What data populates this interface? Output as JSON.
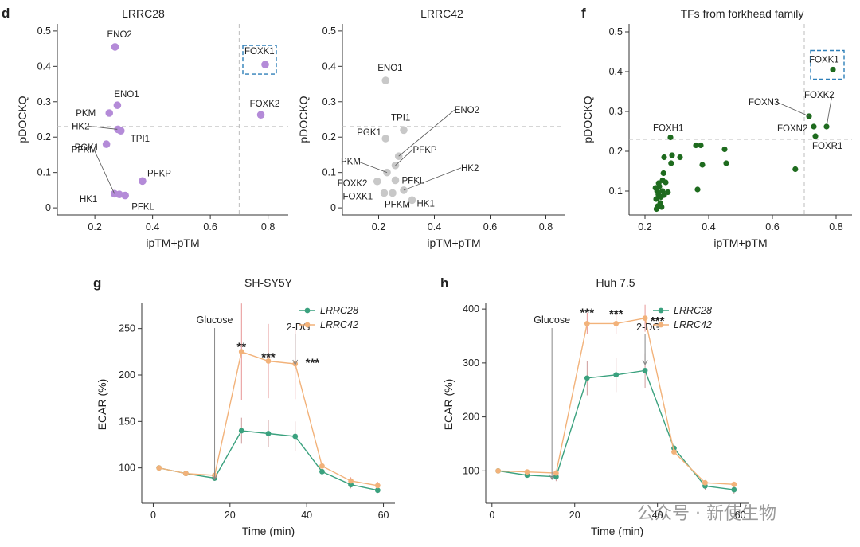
{
  "panels": {
    "d": "d",
    "f": "f",
    "g": "g",
    "h": "h"
  },
  "watermark": "公众号 · 新使生物",
  "chart_data": [
    {
      "id": "lrrc28",
      "type": "scatter",
      "title": "LRRC28",
      "xlabel": "ipTM+pTM",
      "ylabel": "pDOCKQ",
      "xlim": [
        0.07,
        0.87
      ],
      "ylim": [
        -0.02,
        0.52
      ],
      "xticks": [
        0.2,
        0.4,
        0.6,
        0.8
      ],
      "yticks": [
        0,
        0.1,
        0.2,
        0.3,
        0.4,
        0.5
      ],
      "xtick_labels": [
        "0.2",
        "0.4",
        "0.6",
        "0.8"
      ],
      "ytick_labels": [
        "0",
        "0.1",
        "0.2",
        "0.3",
        "0.4",
        "0.5"
      ],
      "hline": 0.23,
      "vline": 0.7,
      "color": "#b48bd8",
      "highlight": "FOXK1",
      "points": [
        {
          "name": "ENO2",
          "x": 0.27,
          "y": 0.455
        },
        {
          "name": "FOXK1",
          "x": 0.79,
          "y": 0.405
        },
        {
          "name": "FOXK2",
          "x": 0.775,
          "y": 0.263
        },
        {
          "name": "ENO1",
          "x": 0.278,
          "y": 0.29
        },
        {
          "name": "PKM",
          "x": 0.25,
          "y": 0.268
        },
        {
          "name": "HK2",
          "x": 0.28,
          "y": 0.222
        },
        {
          "name": "TPI1",
          "x": 0.29,
          "y": 0.218
        },
        {
          "name": "PGK1",
          "x": 0.24,
          "y": 0.18
        },
        {
          "name": "PFKP",
          "x": 0.365,
          "y": 0.076
        },
        {
          "name": "PFKM",
          "x": 0.268,
          "y": 0.04
        },
        {
          "name": "HK1",
          "x": 0.285,
          "y": 0.038
        },
        {
          "name": "PFKL",
          "x": 0.305,
          "y": 0.035
        }
      ]
    },
    {
      "id": "lrrc42",
      "type": "scatter",
      "title": "LRRC42",
      "xlabel": "ipTM+pTM",
      "ylabel": "pDOCKQ",
      "xlim": [
        0.07,
        0.87
      ],
      "ylim": [
        -0.02,
        0.52
      ],
      "xticks": [
        0.2,
        0.4,
        0.6,
        0.8
      ],
      "yticks": [
        0,
        0.1,
        0.2,
        0.3,
        0.4,
        0.5
      ],
      "xtick_labels": [
        "0.2",
        "0.4",
        "0.6",
        "0.8"
      ],
      "ytick_labels": [
        "0",
        "0.1",
        "0.2",
        "0.3",
        "0.4",
        "0.5"
      ],
      "hline": 0.23,
      "vline": 0.7,
      "color": "#c8c8c8",
      "points": [
        {
          "name": "ENO1",
          "x": 0.225,
          "y": 0.36
        },
        {
          "name": "TPI1",
          "x": 0.29,
          "y": 0.22
        },
        {
          "name": "PGK1",
          "x": 0.225,
          "y": 0.196
        },
        {
          "name": "ENO2",
          "x": 0.272,
          "y": 0.146
        },
        {
          "name": "PFKP",
          "x": 0.26,
          "y": 0.12
        },
        {
          "name": "PKM",
          "x": 0.23,
          "y": 0.1
        },
        {
          "name": "FOXK2",
          "x": 0.195,
          "y": 0.075
        },
        {
          "name": "PFKL",
          "x": 0.26,
          "y": 0.078
        },
        {
          "name": "HK2",
          "x": 0.29,
          "y": 0.05
        },
        {
          "name": "FOXK1",
          "x": 0.22,
          "y": 0.042
        },
        {
          "name": "PFKM",
          "x": 0.25,
          "y": 0.042
        },
        {
          "name": "HK1",
          "x": 0.32,
          "y": 0.022
        }
      ]
    },
    {
      "id": "forkhead",
      "type": "scatter",
      "title": "TFs from forkhead family",
      "xlabel": "ipTM+pTM",
      "ylabel": "pDOCKQ",
      "xlim": [
        0.15,
        0.85
      ],
      "ylim": [
        0.04,
        0.52
      ],
      "xticks": [
        0.2,
        0.4,
        0.6,
        0.8
      ],
      "yticks": [
        0.1,
        0.2,
        0.3,
        0.4,
        0.5
      ],
      "xtick_labels": [
        "0.2",
        "0.4",
        "0.6",
        "0.8"
      ],
      "ytick_labels": [
        "0.1",
        "0.2",
        "0.3",
        "0.4",
        "0.5"
      ],
      "hline": 0.23,
      "vline": 0.7,
      "color": "#1e6b1e",
      "highlight": "FOXK1",
      "labels": [
        "FOXK1",
        "FOXN3",
        "FOXK2",
        "FOXN2",
        "FOXR1",
        "FOXH1"
      ],
      "points": [
        {
          "name": "FOXK1",
          "x": 0.79,
          "y": 0.405
        },
        {
          "name": "FOXN3",
          "x": 0.715,
          "y": 0.288
        },
        {
          "name": "FOXK2",
          "x": 0.77,
          "y": 0.262
        },
        {
          "name": "FOXN2",
          "x": 0.73,
          "y": 0.262
        },
        {
          "name": "FOXR1",
          "x": 0.735,
          "y": 0.238
        },
        {
          "name": "FOXH1",
          "x": 0.28,
          "y": 0.235
        },
        {
          "name": "",
          "x": 0.672,
          "y": 0.155
        },
        {
          "name": "",
          "x": 0.45,
          "y": 0.205
        },
        {
          "name": "",
          "x": 0.455,
          "y": 0.17
        },
        {
          "name": "",
          "x": 0.36,
          "y": 0.215
        },
        {
          "name": "",
          "x": 0.375,
          "y": 0.215
        },
        {
          "name": "",
          "x": 0.38,
          "y": 0.166
        },
        {
          "name": "",
          "x": 0.365,
          "y": 0.104
        },
        {
          "name": "",
          "x": 0.26,
          "y": 0.185
        },
        {
          "name": "",
          "x": 0.31,
          "y": 0.185
        },
        {
          "name": "",
          "x": 0.285,
          "y": 0.19
        },
        {
          "name": "",
          "x": 0.282,
          "y": 0.17
        },
        {
          "name": "",
          "x": 0.258,
          "y": 0.145
        },
        {
          "name": "",
          "x": 0.265,
          "y": 0.122
        },
        {
          "name": "",
          "x": 0.255,
          "y": 0.127
        },
        {
          "name": "",
          "x": 0.272,
          "y": 0.097
        },
        {
          "name": "",
          "x": 0.26,
          "y": 0.09
        },
        {
          "name": "",
          "x": 0.245,
          "y": 0.112
        },
        {
          "name": "",
          "x": 0.238,
          "y": 0.1
        },
        {
          "name": "",
          "x": 0.242,
          "y": 0.092
        },
        {
          "name": "",
          "x": 0.25,
          "y": 0.085
        },
        {
          "name": "",
          "x": 0.235,
          "y": 0.08
        },
        {
          "name": "",
          "x": 0.248,
          "y": 0.07
        },
        {
          "name": "",
          "x": 0.24,
          "y": 0.062
        },
        {
          "name": "",
          "x": 0.236,
          "y": 0.055
        },
        {
          "name": "",
          "x": 0.252,
          "y": 0.06
        },
        {
          "name": "",
          "x": 0.243,
          "y": 0.12
        },
        {
          "name": "",
          "x": 0.233,
          "y": 0.108
        },
        {
          "name": "",
          "x": 0.255,
          "y": 0.1
        }
      ]
    },
    {
      "id": "shsy5y",
      "type": "line",
      "title": "SH-SY5Y",
      "xlabel": "Time (min)",
      "ylabel": "ECAR (%)",
      "xlim": [
        -3,
        63
      ],
      "ylim": [
        62,
        278
      ],
      "xticks": [
        0,
        20,
        40,
        60
      ],
      "yticks": [
        100,
        150,
        200,
        250
      ],
      "xtick_labels": [
        "0",
        "20",
        "40",
        "60"
      ],
      "ytick_labels": [
        "100",
        "150",
        "200",
        "250"
      ],
      "x": [
        1.5,
        8.5,
        16,
        23,
        30,
        37,
        44,
        51.5,
        58.5
      ],
      "series": [
        {
          "name": "LRRC28",
          "color": "#3aa17e",
          "values": [
            100,
            94,
            89,
            140,
            137,
            134,
            96,
            82,
            76
          ],
          "err": [
            2,
            2,
            3,
            14,
            15,
            16,
            5,
            4,
            3
          ]
        },
        {
          "name": "LRRC42",
          "color": "#f2b27a",
          "values": [
            100,
            94,
            92,
            225,
            215,
            212,
            102,
            86,
            81
          ],
          "err": [
            2,
            2,
            3,
            52,
            40,
            38,
            5,
            4,
            4
          ]
        }
      ],
      "arrows": [
        {
          "label": "Glucose",
          "x": 16
        },
        {
          "label": "2-DG",
          "x": 37
        }
      ],
      "annotations": [
        {
          "text": "**",
          "x": 23,
          "y": 226
        },
        {
          "text": "***",
          "x": 30,
          "y": 215
        },
        {
          "text": "***",
          "x": 41.5,
          "y": 209
        }
      ]
    },
    {
      "id": "huh75",
      "type": "line",
      "title": "Huh 7.5",
      "xlabel": "Time (min)",
      "ylabel": "ECAR (%)",
      "xlim": [
        -1.5,
        62
      ],
      "ylim": [
        40,
        412
      ],
      "xticks": [
        0,
        20,
        40,
        60
      ],
      "yticks": [
        100,
        200,
        300,
        400
      ],
      "xtick_labels": [
        "0",
        "20",
        "40",
        "60"
      ],
      "ytick_labels": [
        "100",
        "200",
        "300",
        "400"
      ],
      "x": [
        1.5,
        8.5,
        15.5,
        23,
        30,
        37,
        44,
        51.5,
        58.5
      ],
      "series": [
        {
          "name": "LRRC28",
          "color": "#3aa17e",
          "values": [
            100,
            92,
            89,
            272,
            278,
            286,
            142,
            72,
            65
          ],
          "err": [
            3,
            5,
            8,
            32,
            32,
            32,
            28,
            8,
            8
          ]
        },
        {
          "name": "LRRC42",
          "color": "#f2b27a",
          "values": [
            100,
            98,
            96,
            373,
            373,
            383,
            135,
            78,
            75
          ],
          "err": [
            3,
            4,
            5,
            20,
            20,
            25,
            20,
            5,
            5
          ]
        }
      ],
      "arrows": [
        {
          "label": "Glucose",
          "x": 14.5
        },
        {
          "label": "2-DG",
          "x": 37
        }
      ],
      "annotations": [
        {
          "text": "***",
          "x": 23,
          "y": 386
        },
        {
          "text": "***",
          "x": 30,
          "y": 384
        },
        {
          "text": "***",
          "x": 40,
          "y": 371
        }
      ]
    }
  ]
}
